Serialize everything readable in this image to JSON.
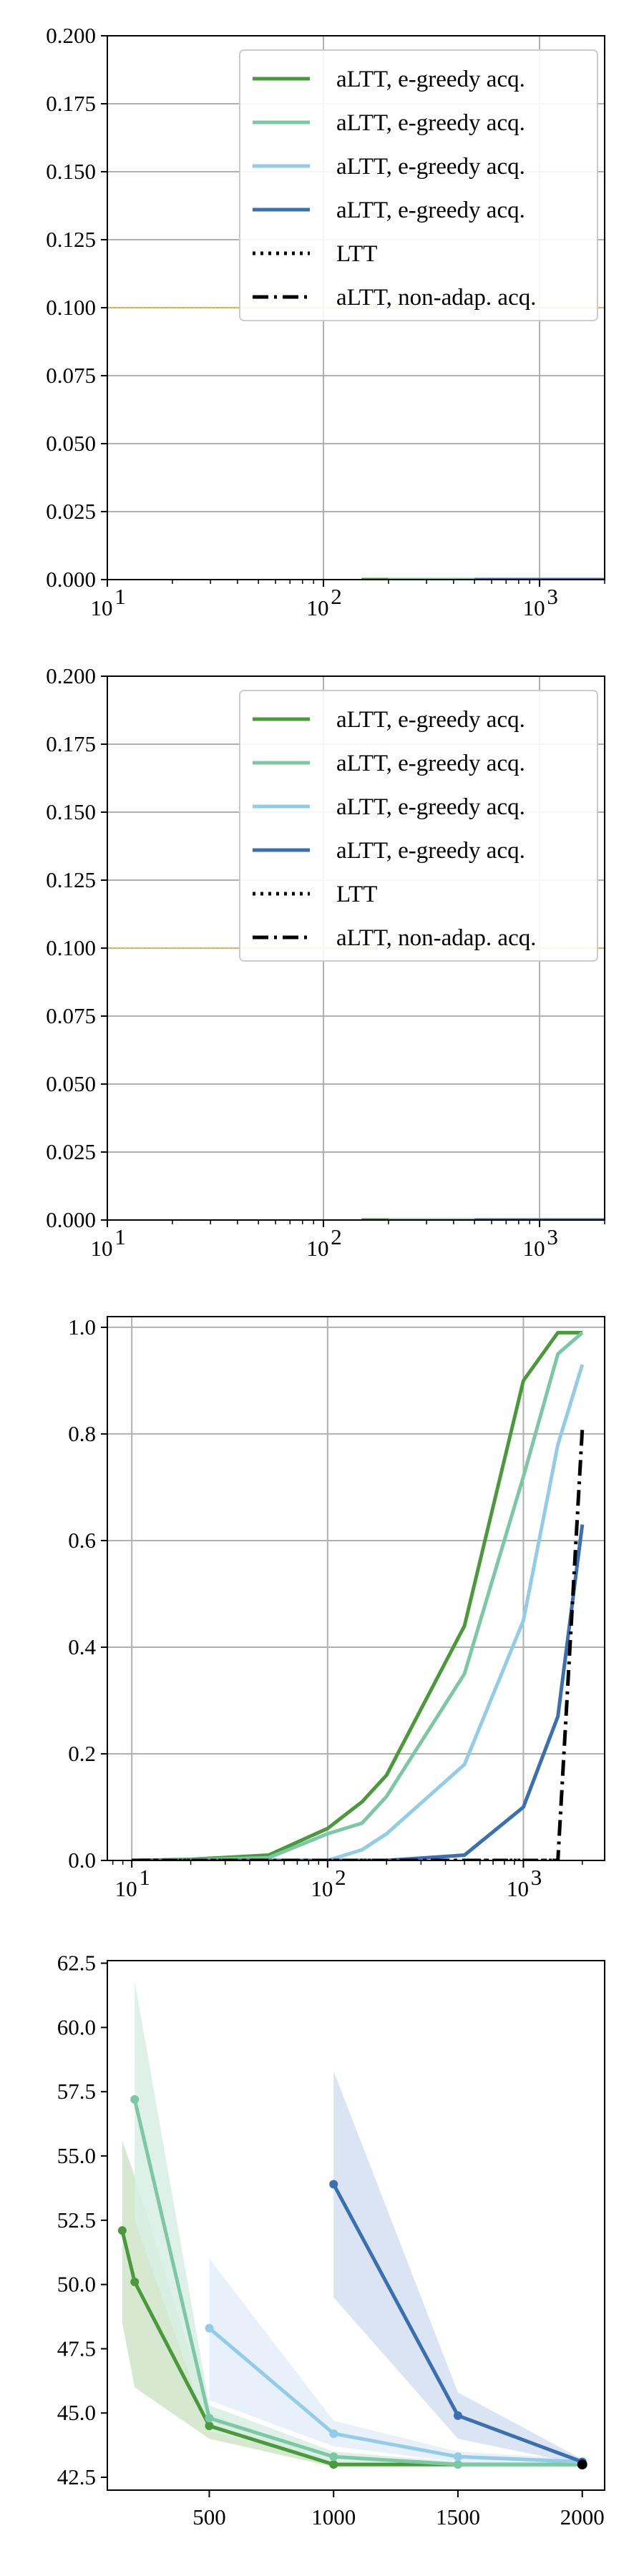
{
  "chart_data": [
    {
      "type": "line",
      "xscale": "log",
      "xlim": [
        10,
        2000
      ],
      "ylim": [
        0,
        0.2
      ],
      "grid": true,
      "x_ticks": [
        {
          "v": 10,
          "b": "10",
          "e": "1"
        },
        {
          "v": 100,
          "b": "10",
          "e": "2"
        },
        {
          "v": 1000,
          "b": "10",
          "e": "3"
        }
      ],
      "y_ticks": [
        "0.000",
        "0.025",
        "0.050",
        "0.075",
        "0.100",
        "0.125",
        "0.150",
        "0.175",
        "0.200"
      ],
      "hline": {
        "value": 0.1,
        "color": "#d4c84a"
      },
      "legend": {
        "placement": "upper right",
        "entries": [
          {
            "label": "aLTT, e-greedy acq.",
            "color": "#4a9a3c",
            "style": "solid"
          },
          {
            "label": "aLTT, e-greedy acq.",
            "color": "#7cc8a4",
            "style": "solid"
          },
          {
            "label": "aLTT, e-greedy acq.",
            "color": "#92cce6",
            "style": "solid"
          },
          {
            "label": "aLTT, e-greedy acq.",
            "color": "#3a6fb0",
            "style": "solid"
          },
          {
            "label": "LTT",
            "color": "#000000",
            "style": "dotted"
          },
          {
            "label": "aLTT, non-adap. acq.",
            "color": "#000000",
            "style": "dashdot"
          }
        ]
      },
      "series": [
        {
          "color": "#4a9a3c",
          "x": [
            150,
            200,
            500,
            1000,
            2000
          ],
          "y": [
            0,
            0,
            0,
            0,
            0
          ]
        },
        {
          "color": "#7cc8a4",
          "x": [
            200,
            500,
            1000,
            2000
          ],
          "y": [
            0,
            0,
            0,
            0
          ]
        },
        {
          "color": "#3a6fb0",
          "x": [
            500,
            1000,
            2000
          ],
          "y": [
            0,
            0,
            0
          ]
        }
      ]
    },
    {
      "type": "line",
      "xscale": "log",
      "xlim": [
        10,
        2000
      ],
      "ylim": [
        0,
        0.2
      ],
      "grid": true,
      "x_ticks": [
        {
          "v": 10,
          "b": "10",
          "e": "1"
        },
        {
          "v": 100,
          "b": "10",
          "e": "2"
        },
        {
          "v": 1000,
          "b": "10",
          "e": "3"
        }
      ],
      "y_ticks": [
        "0.000",
        "0.025",
        "0.050",
        "0.075",
        "0.100",
        "0.125",
        "0.150",
        "0.175",
        "0.200"
      ],
      "hline": {
        "value": 0.1,
        "color": "#d4c84a"
      },
      "legend": {
        "placement": "upper right",
        "entries": [
          {
            "label": "aLTT, e-greedy acq.",
            "color": "#4a9a3c",
            "style": "solid"
          },
          {
            "label": "aLTT, e-greedy acq.",
            "color": "#7cc8a4",
            "style": "solid"
          },
          {
            "label": "aLTT, e-greedy acq.",
            "color": "#92cce6",
            "style": "solid"
          },
          {
            "label": "aLTT, e-greedy acq.",
            "color": "#3a6fb0",
            "style": "solid"
          },
          {
            "label": "LTT",
            "color": "#000000",
            "style": "dotted"
          },
          {
            "label": "aLTT, non-adap. acq.",
            "color": "#000000",
            "style": "dashdot"
          }
        ]
      },
      "series": [
        {
          "color": "#4a9a3c",
          "x": [
            150,
            200,
            500,
            1000,
            2000
          ],
          "y": [
            0,
            0,
            0,
            0,
            0
          ]
        },
        {
          "color": "#7cc8a4",
          "x": [
            200,
            500,
            1000,
            2000
          ],
          "y": [
            0,
            0,
            0,
            0
          ]
        },
        {
          "color": "#3a6fb0",
          "x": [
            500,
            1000,
            2000
          ],
          "y": [
            0,
            0,
            0
          ]
        }
      ]
    },
    {
      "type": "line",
      "xscale": "log",
      "xlim": [
        7.5,
        2600
      ],
      "ylim": [
        0,
        1.02
      ],
      "grid": true,
      "x_ticks": [
        {
          "v": 10,
          "b": "10",
          "e": "1"
        },
        {
          "v": 100,
          "b": "10",
          "e": "2"
        },
        {
          "v": 1000,
          "b": "10",
          "e": "3"
        }
      ],
      "y_ticks": [
        "0.0",
        "0.2",
        "0.4",
        "0.6",
        "0.8",
        "1.0"
      ],
      "series": [
        {
          "color": "#4a9a3c",
          "style": "solid",
          "x": [
            10,
            20,
            50,
            100,
            150,
            200,
            500,
            1000,
            1500,
            2000
          ],
          "y": [
            0,
            0.002,
            0.01,
            0.06,
            0.11,
            0.16,
            0.44,
            0.9,
            0.99,
            0.99
          ]
        },
        {
          "color": "#7cc8a4",
          "style": "solid",
          "x": [
            10,
            20,
            50,
            100,
            150,
            200,
            500,
            1000,
            1500,
            2000
          ],
          "y": [
            0,
            0.001,
            0.005,
            0.05,
            0.07,
            0.12,
            0.35,
            0.72,
            0.95,
            0.99
          ]
        },
        {
          "color": "#92cce6",
          "style": "solid",
          "x": [
            10,
            20,
            50,
            100,
            150,
            200,
            500,
            1000,
            1500,
            2000
          ],
          "y": [
            0,
            0,
            0,
            0,
            0.02,
            0.05,
            0.18,
            0.45,
            0.78,
            0.93
          ]
        },
        {
          "color": "#3a6fb0",
          "style": "solid",
          "x": [
            10,
            50,
            200,
            500,
            1000,
            1500,
            2000
          ],
          "y": [
            0,
            0,
            0,
            0.01,
            0.1,
            0.27,
            0.63
          ]
        },
        {
          "color": "#000000",
          "style": "dotted",
          "x": [
            10,
            100,
            1000,
            1400,
            1500
          ],
          "y": [
            0,
            0,
            0,
            0,
            0
          ]
        },
        {
          "color": "#000000",
          "style": "dashdot",
          "x": [
            10,
            1000,
            1500,
            2000
          ],
          "y": [
            0,
            0,
            0,
            0.81
          ]
        }
      ]
    },
    {
      "type": "line",
      "xscale": "linear",
      "xlim": [
        90,
        2090
      ],
      "ylim": [
        42.0,
        62.6
      ],
      "grid": false,
      "x_ticks": [
        {
          "v": 500,
          "t": "500"
        },
        {
          "v": 1000,
          "t": "1000"
        },
        {
          "v": 1500,
          "t": "1500"
        },
        {
          "v": 2000,
          "t": "2000"
        }
      ],
      "y_ticks": [
        "42.5",
        "45.0",
        "47.5",
        "50.0",
        "52.5",
        "55.0",
        "57.5",
        "60.0",
        "62.5"
      ],
      "series": [
        {
          "color": "#4a9a3c",
          "band": "#cfe4c8",
          "x": [
            150,
            200,
            500,
            1000,
            2000
          ],
          "y": [
            52.1,
            50.1,
            44.5,
            43.0,
            43.0
          ],
          "lo": [
            48.5,
            46.0,
            44.0,
            42.9,
            42.9
          ],
          "hi": [
            55.6,
            54.2,
            45.0,
            43.1,
            43.1
          ]
        },
        {
          "color": "#7cc8a4",
          "band": "#d8efe4",
          "x": [
            200,
            500,
            1000,
            1500,
            2000
          ],
          "y": [
            57.2,
            44.8,
            43.3,
            43.0,
            43.0
          ],
          "lo": [
            52.5,
            44.3,
            43.1,
            42.9,
            42.9
          ],
          "hi": [
            61.8,
            45.3,
            43.5,
            43.1,
            43.1
          ]
        },
        {
          "color": "#92cce6",
          "band": "#e4eff8",
          "x": [
            500,
            1000,
            1500,
            2000
          ],
          "y": [
            48.3,
            44.2,
            43.3,
            43.1
          ],
          "lo": [
            45.5,
            43.7,
            43.1,
            43.0
          ],
          "hi": [
            51.0,
            44.7,
            43.5,
            43.2
          ]
        },
        {
          "color": "#3a6fb0",
          "band": "#d3dff0",
          "x": [
            1000,
            1500,
            2000
          ],
          "y": [
            53.9,
            44.9,
            43.1
          ],
          "lo": [
            49.5,
            44.0,
            43.0
          ],
          "hi": [
            58.3,
            45.8,
            43.2
          ]
        }
      ],
      "points": [
        {
          "x": 2000,
          "y": 43.0,
          "color": "#000000"
        }
      ]
    }
  ]
}
